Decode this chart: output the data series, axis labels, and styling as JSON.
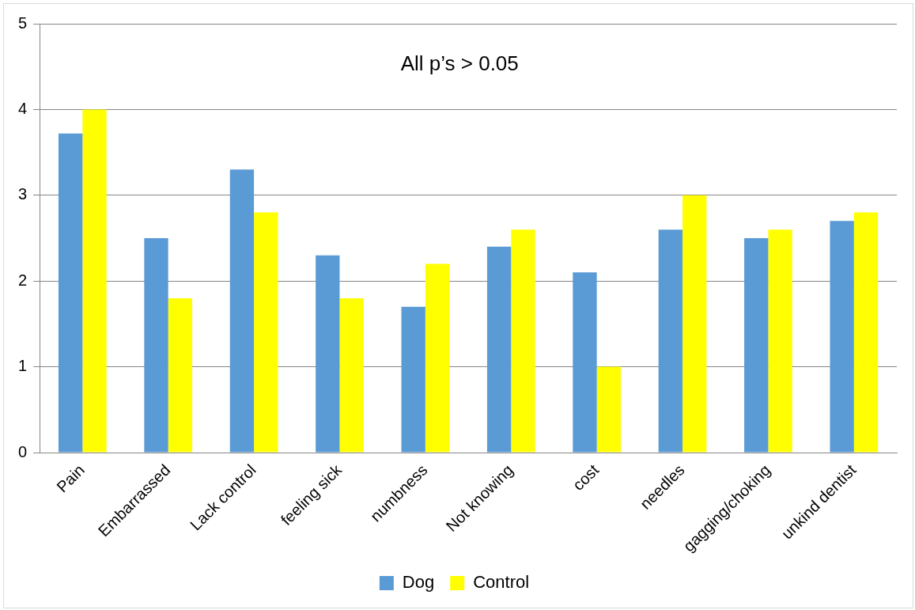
{
  "chart_data": {
    "type": "bar",
    "categories": [
      "Pain",
      "Embarrassed",
      "Lack control",
      "feeling sick",
      "numbness",
      "Not knowing",
      "cost",
      "needles",
      "gagging/choking",
      "unkind dentist"
    ],
    "series": [
      {
        "name": "Dog",
        "color": "#5b9bd5",
        "values": [
          3.72,
          2.5,
          3.3,
          2.3,
          1.7,
          2.4,
          2.1,
          2.6,
          2.5,
          2.7
        ]
      },
      {
        "name": "Control",
        "color": "#ffff00",
        "values": [
          4.0,
          1.8,
          2.8,
          1.8,
          2.2,
          2.6,
          1.0,
          3.0,
          2.6,
          2.8
        ]
      }
    ],
    "ylim": [
      0,
      5
    ],
    "yticks": [
      0,
      1,
      2,
      3,
      4,
      5
    ],
    "grid": "y",
    "legend": "bottom",
    "annotations": [
      "All p’s > 0.05"
    ]
  }
}
